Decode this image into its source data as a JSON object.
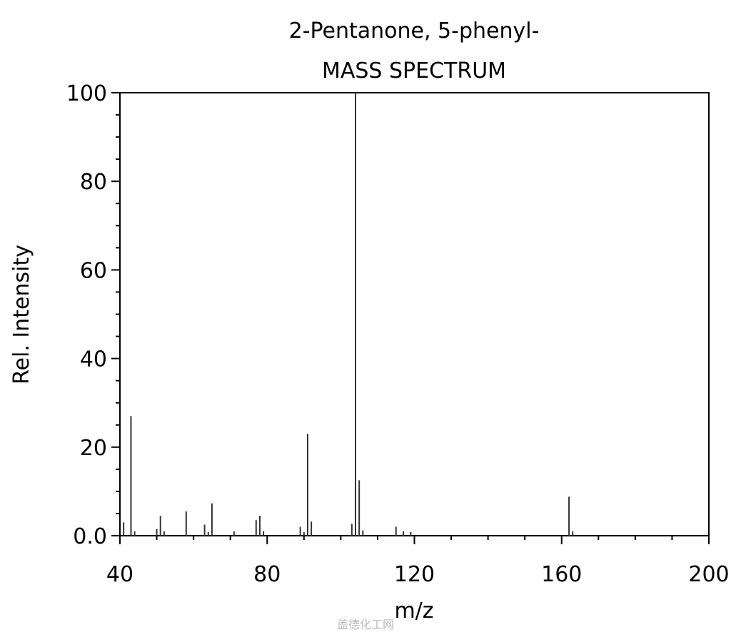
{
  "chart_data": {
    "type": "bar",
    "title": "2-Pentanone, 5-phenyl-",
    "subtitle": "MASS SPECTRUM",
    "xlabel": "m/z",
    "ylabel": "Rel. Intensity",
    "xlim": [
      40,
      200
    ],
    "ylim": [
      0,
      100
    ],
    "x_ticks": [
      "40",
      "80",
      "120",
      "160",
      "200"
    ],
    "y_ticks": [
      "0.0",
      "20",
      "40",
      "60",
      "80",
      "100"
    ],
    "grid": false,
    "legend": "none",
    "peaks": [
      {
        "mz": 41,
        "intensity": 3
      },
      {
        "mz": 43,
        "intensity": 27
      },
      {
        "mz": 44,
        "intensity": 1
      },
      {
        "mz": 50,
        "intensity": 1.5
      },
      {
        "mz": 51,
        "intensity": 4.5
      },
      {
        "mz": 52,
        "intensity": 1
      },
      {
        "mz": 58,
        "intensity": 5.5
      },
      {
        "mz": 63,
        "intensity": 2.5
      },
      {
        "mz": 64,
        "intensity": 0.8
      },
      {
        "mz": 65,
        "intensity": 7.3
      },
      {
        "mz": 71,
        "intensity": 1
      },
      {
        "mz": 77,
        "intensity": 3.5
      },
      {
        "mz": 78,
        "intensity": 4.5
      },
      {
        "mz": 79,
        "intensity": 1
      },
      {
        "mz": 89,
        "intensity": 2
      },
      {
        "mz": 90,
        "intensity": 0.8
      },
      {
        "mz": 91,
        "intensity": 23
      },
      {
        "mz": 92,
        "intensity": 3.2
      },
      {
        "mz": 103,
        "intensity": 2.7
      },
      {
        "mz": 104,
        "intensity": 100
      },
      {
        "mz": 105,
        "intensity": 12.5
      },
      {
        "mz": 106,
        "intensity": 1.2
      },
      {
        "mz": 115,
        "intensity": 2
      },
      {
        "mz": 117,
        "intensity": 1
      },
      {
        "mz": 119,
        "intensity": 0.8
      },
      {
        "mz": 162,
        "intensity": 8.8
      },
      {
        "mz": 163,
        "intensity": 1
      }
    ],
    "colors": {
      "axis": "#000000",
      "peak": "#333333"
    }
  },
  "watermark": "盖德化工网"
}
